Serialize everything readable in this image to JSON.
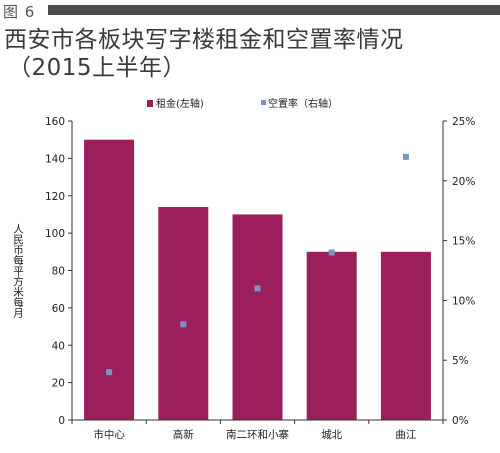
{
  "figure_label": "图 6",
  "title_line1": "西安市各板块写字楼租金和空置率情况",
  "title_line2": "（2015上半年）",
  "colors": {
    "bar": "#9b1f5a",
    "point": "#7a93c8",
    "header_bar": "#4d4d4d",
    "axis": "#333333"
  },
  "chart_data": {
    "type": "bar",
    "categories": [
      "市中心",
      "高新",
      "南二环和小寨",
      "城北",
      "曲江"
    ],
    "series": [
      {
        "name": "租金(左轴)",
        "type": "bar",
        "axis": "left",
        "values": [
          150,
          114,
          110,
          90,
          90
        ]
      },
      {
        "name": "空置率（右轴）",
        "type": "scatter",
        "axis": "right",
        "values": [
          0.04,
          0.08,
          0.11,
          0.14,
          0.22
        ]
      }
    ],
    "ylabel": "人民币每平方米每月",
    "ylim": [
      0,
      160
    ],
    "yticks": [
      "0",
      "20",
      "40",
      "60",
      "80",
      "100",
      "120",
      "140",
      "160"
    ],
    "y2lim": [
      0,
      0.25
    ],
    "y2ticks": [
      "0%",
      "5%",
      "10%",
      "15%",
      "20%",
      "25%"
    ],
    "legend_position": "top",
    "grid": false
  }
}
